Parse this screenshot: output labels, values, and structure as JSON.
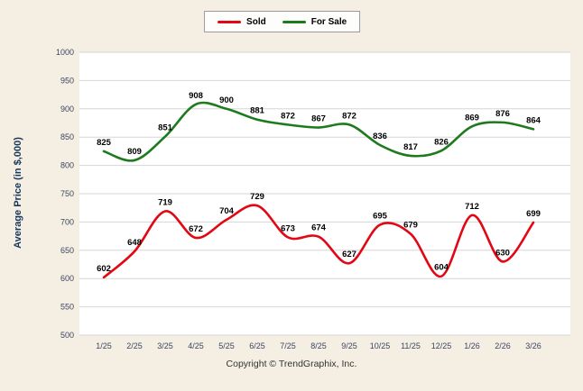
{
  "footer": "Copyright © TrendGraphix, Inc.",
  "chart_data": {
    "type": "line",
    "title": "",
    "xlabel": "",
    "ylabel": "Average Price (in $,000)",
    "ylim": [
      500,
      1000
    ],
    "ytick_step": 50,
    "grid": true,
    "legend_position": "top",
    "categories": [
      "1/25",
      "2/25",
      "3/25",
      "4/25",
      "5/25",
      "6/25",
      "7/25",
      "8/25",
      "9/25",
      "10/25",
      "11/25",
      "12/25",
      "1/26",
      "2/26",
      "3/26"
    ],
    "series": [
      {
        "name": "Sold",
        "color": "#e30613",
        "values": [
          602,
          648,
          719,
          672,
          704,
          729,
          673,
          674,
          627,
          695,
          679,
          604,
          712,
          630,
          699
        ]
      },
      {
        "name": "For Sale",
        "color": "#1d7a1d",
        "values": [
          825,
          809,
          851,
          908,
          900,
          881,
          872,
          867,
          872,
          836,
          817,
          826,
          869,
          876,
          864
        ]
      }
    ]
  }
}
